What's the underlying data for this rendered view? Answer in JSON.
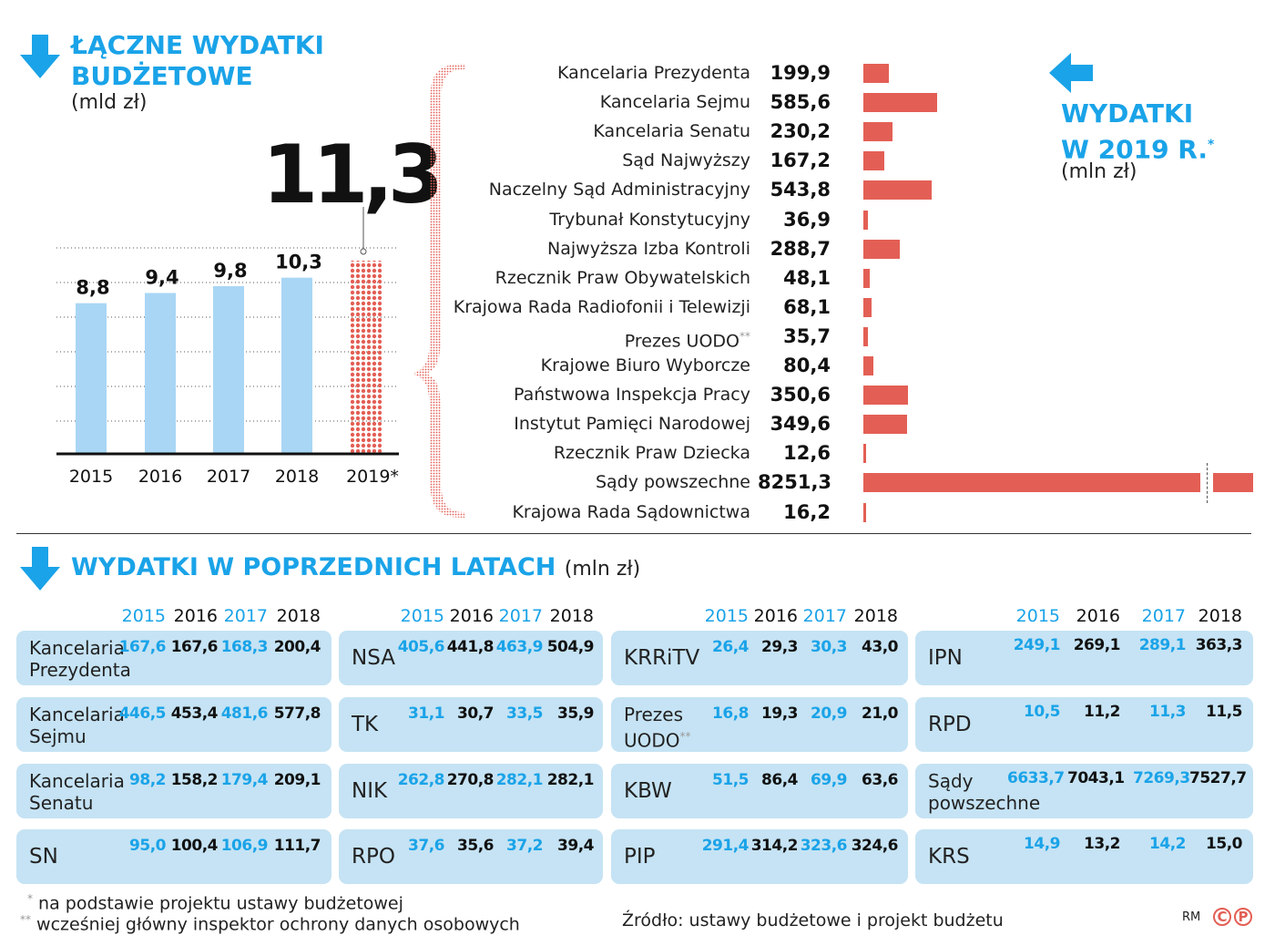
{
  "total": {
    "title_line1": "ŁĄCZNE WYDATKI",
    "title_line2": "BUDŻETOWE",
    "unit": "(mld zł)",
    "highlight_value": "11,3"
  },
  "per_institution": {
    "title_line1": "WYDATKI",
    "title_line2": "W 2019 R.",
    "title_mark": "*",
    "unit": "(mln zł)"
  },
  "history": {
    "title": "WYDATKI W POPRZEDNICH LATACH",
    "unit": "(mln zł)",
    "years": [
      "2015",
      "2016",
      "2017",
      "2018"
    ],
    "groups": [
      [
        {
          "name": [
            "Kancelaria",
            "Prezydenta"
          ],
          "values": [
            "167,6",
            "167,6",
            "168,3",
            "200,4"
          ]
        },
        {
          "name": [
            "Kancelaria",
            "Sejmu"
          ],
          "values": [
            "446,5",
            "453,4",
            "481,6",
            "577,8"
          ]
        },
        {
          "name": [
            "Kancelaria",
            "Senatu"
          ],
          "values": [
            "98,2",
            "158,2",
            "179,4",
            "209,1"
          ]
        },
        {
          "name": [
            "SN"
          ],
          "values": [
            "95,0",
            "100,4",
            "106,9",
            "111,7"
          ]
        }
      ],
      [
        {
          "name": [
            "NSA"
          ],
          "values": [
            "405,6",
            "441,8",
            "463,9",
            "504,9"
          ]
        },
        {
          "name": [
            "TK"
          ],
          "values": [
            "31,1",
            "30,7",
            "33,5",
            "35,9"
          ]
        },
        {
          "name": [
            "NIK"
          ],
          "values": [
            "262,8",
            "270,8",
            "282,1",
            "282,1"
          ]
        },
        {
          "name": [
            "RPO"
          ],
          "values": [
            "37,6",
            "35,6",
            "37,2",
            "39,4"
          ]
        }
      ],
      [
        {
          "name": [
            "KRRiTV"
          ],
          "values": [
            "26,4",
            "29,3",
            "30,3",
            "43,0"
          ]
        },
        {
          "name": [
            "Prezes",
            "UODO**"
          ],
          "values": [
            "16,8",
            "19,3",
            "20,9",
            "21,0"
          ]
        },
        {
          "name": [
            "KBW"
          ],
          "values": [
            "51,5",
            "86,4",
            "69,9",
            "63,6"
          ]
        },
        {
          "name": [
            "PIP"
          ],
          "values": [
            "291,4",
            "314,2",
            "323,6",
            "324,6"
          ]
        }
      ],
      [
        {
          "name": [
            "IPN"
          ],
          "values": [
            "249,1",
            "269,1",
            "289,1",
            "363,3"
          ]
        },
        {
          "name": [
            "RPD"
          ],
          "values": [
            "10,5",
            "11,2",
            "11,3",
            "11,5"
          ]
        },
        {
          "name": [
            "Sądy",
            "powszechne"
          ],
          "values": [
            "6633,7",
            "7043,1",
            "7269,3",
            "7527,7"
          ]
        },
        {
          "name": [
            "KRS"
          ],
          "values": [
            "14,9",
            "13,2",
            "14,2",
            "15,0"
          ]
        }
      ]
    ]
  },
  "footnotes": {
    "note1_mark": "*",
    "note1": "na podstawie projektu ustawy budżetowej",
    "note2_mark": "**",
    "note2": "wcześniej główny inspektor ochrony danych osobowych",
    "source": "Źródło: ustawy budżetowe i projekt budżetu",
    "credit": "RM",
    "logo_c": "C",
    "logo_p": "P"
  },
  "colors": {
    "accent_blue": "#1aa3e8",
    "bar_blue": "#a9d6f5",
    "bar_red": "#e35f55",
    "card_bg": "#c5e3f4"
  },
  "chart_data": [
    {
      "type": "bar",
      "title": "ŁĄCZNE WYDATKI BUDŻETOWE",
      "ylabel": "(mld zł)",
      "categories": [
        "2015",
        "2016",
        "2017",
        "2018",
        "2019*"
      ],
      "values": [
        8.8,
        9.4,
        9.8,
        10.3,
        11.3
      ],
      "labels": [
        "8,8",
        "9,4",
        "9,8",
        "10,3",
        "11,3"
      ],
      "ylim": [
        0,
        11.3
      ],
      "note": "2019 projected"
    },
    {
      "type": "bar",
      "orientation": "horizontal",
      "title": "WYDATKI W 2019 R.*",
      "unit": "(mln zł)",
      "categories": [
        "Kancelaria Prezydenta",
        "Kancelaria Sejmu",
        "Kancelaria Senatu",
        "Sąd Najwyższy",
        "Naczelny Sąd Administracyjny",
        "Trybunał Konstytucyjny",
        "Najwyższa Izba Kontroli",
        "Rzecznik Praw Obywatelskich",
        "Krajowa Rada Radiofonii i Telewizji",
        "Prezes UODO**",
        "Krajowe Biuro Wyborcze",
        "Państwowa Inspekcja Pracy",
        "Instytut Pamięci Narodowej",
        "Rzecznik Praw Dziecka",
        "Sądy powszechne",
        "Krajowa Rada Sądownictwa"
      ],
      "values": [
        199.9,
        585.6,
        230.2,
        167.2,
        543.8,
        36.9,
        288.7,
        48.1,
        68.1,
        35.7,
        80.4,
        350.6,
        349.6,
        12.6,
        8251.3,
        16.2
      ],
      "labels": [
        "199,9",
        "585,6",
        "230,2",
        "167,2",
        "543,8",
        "36,9",
        "288,7",
        "48,1",
        "68,1",
        "35,7",
        "80,4",
        "350,6",
        "349,6",
        "12,6",
        "8251,3",
        "16,2"
      ],
      "axis_break": true
    }
  ]
}
